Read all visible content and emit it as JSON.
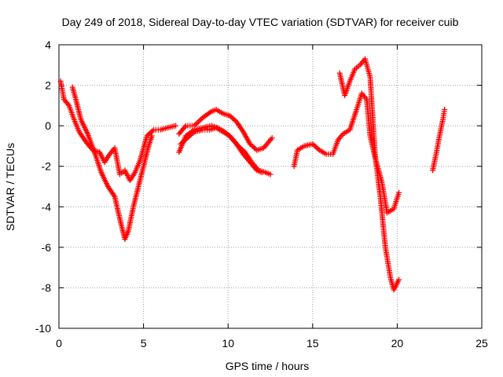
{
  "chart_data": {
    "type": "scatter",
    "title": "Day 249 of 2018, Sidereal Day-to-day VTEC variation (SDTVAR) for receiver cuib",
    "xlabel": "GPS time / hours",
    "ylabel": "SDTVAR / TECUs",
    "xlim": [
      0,
      25
    ],
    "ylim": [
      -10,
      4
    ],
    "xticks": [
      "0",
      "5",
      "10",
      "15",
      "20",
      "25"
    ],
    "yticks": [
      "-10",
      "-8",
      "-6",
      "-4",
      "-2",
      "0",
      "2",
      "4"
    ],
    "grid": true,
    "marker": "+",
    "colors": {
      "series": "#ff0000"
    },
    "series": [
      {
        "x": [
          0.1,
          0.3,
          0.6,
          0.9,
          1.2,
          1.6,
          2.0,
          2.4,
          2.7,
          3.0,
          3.3,
          3.6,
          3.9,
          4.2,
          4.5,
          4.8,
          5.2,
          5.6,
          6.0,
          6.4,
          6.9
        ],
        "y": [
          2.2,
          1.3,
          1.0,
          0.3,
          -0.3,
          -0.8,
          -1.2,
          -1.3,
          -1.8,
          -1.4,
          -1.1,
          -2.4,
          -2.2,
          -2.7,
          -2.3,
          -1.7,
          -0.5,
          -0.2,
          -0.2,
          -0.1,
          0.0
        ]
      },
      {
        "x": [
          0.8,
          1.0,
          1.3,
          1.7,
          2.1,
          2.5,
          2.9,
          3.3,
          3.6,
          3.9,
          4.1,
          4.4,
          4.7,
          5.0,
          5.3,
          5.5
        ],
        "y": [
          1.9,
          1.3,
          0.3,
          -0.4,
          -1.3,
          -2.3,
          -3.0,
          -3.5,
          -4.6,
          -5.6,
          -5.2,
          -4.0,
          -3.0,
          -2.0,
          -1.0,
          -0.5
        ]
      },
      {
        "x": [
          7.1,
          7.5,
          8.0,
          8.5,
          9.0,
          9.4,
          9.8,
          10.2,
          10.6,
          11.0,
          11.4,
          11.8,
          12.2,
          12.5
        ],
        "y": [
          -1.3,
          -0.5,
          -0.2,
          -0.1,
          0.0,
          -0.1,
          -0.3,
          -0.6,
          -1.0,
          -1.3,
          -1.8,
          -2.2,
          -2.3,
          -2.4
        ]
      },
      {
        "x": [
          7.1,
          7.5,
          8.0,
          8.5,
          9.0,
          9.3,
          9.7,
          10.1,
          10.5,
          10.9,
          11.3,
          11.7,
          12.1,
          12.6
        ],
        "y": [
          -0.4,
          0.0,
          0.0,
          0.4,
          0.7,
          0.8,
          0.6,
          0.5,
          0.2,
          -0.3,
          -0.9,
          -1.2,
          -1.1,
          -0.6
        ]
      },
      {
        "x": [
          7.2,
          7.6,
          8.0,
          8.5,
          8.9,
          9.3,
          9.7,
          10.1,
          10.5,
          10.9,
          11.3,
          11.7,
          12.0
        ],
        "y": [
          -0.9,
          -0.6,
          -0.3,
          -0.2,
          -0.2,
          -0.1,
          -0.3,
          -0.5,
          -0.9,
          -1.4,
          -1.8,
          -2.2,
          -2.3
        ]
      },
      {
        "x": [
          13.9,
          14.1,
          14.5,
          15.0,
          15.4,
          15.8,
          16.2,
          16.5,
          16.8,
          17.2,
          17.6,
          17.9,
          18.2,
          18.4,
          18.7,
          19.1,
          19.4,
          19.8,
          20.1
        ],
        "y": [
          -2.0,
          -1.2,
          -1.0,
          -0.9,
          -1.2,
          -1.4,
          -1.4,
          -0.7,
          -0.4,
          -0.2,
          0.8,
          1.6,
          1.3,
          -0.5,
          -1.6,
          -2.8,
          -4.3,
          -4.1,
          -3.3
        ]
      },
      {
        "x": [
          16.6,
          16.9,
          17.2,
          17.5,
          17.8,
          18.1,
          18.4,
          18.7,
          19.0,
          19.3,
          19.6,
          19.8,
          20.1
        ],
        "y": [
          2.6,
          1.5,
          2.2,
          2.8,
          3.0,
          3.3,
          2.4,
          -1.5,
          -3.5,
          -6.0,
          -7.5,
          -8.1,
          -7.6
        ]
      },
      {
        "x": [
          22.1,
          22.3,
          22.5,
          22.7,
          22.8
        ],
        "y": [
          -2.2,
          -1.4,
          -0.5,
          0.3,
          0.8
        ]
      }
    ]
  }
}
